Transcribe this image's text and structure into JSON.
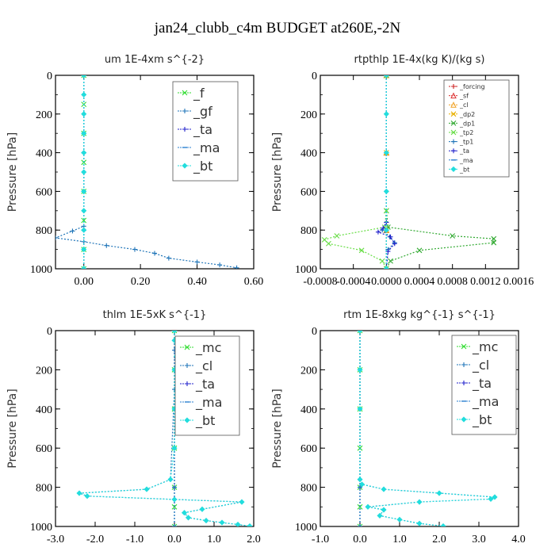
{
  "title": "jan24_clubb_c4m  BUDGET at260E,-2N",
  "chart_data": [
    {
      "type": "line",
      "title": "um   1E-4xm s^{-2}",
      "ylabel": "Pressure [hPa]",
      "xlim": [
        -0.1,
        0.6
      ],
      "ylim": [
        1000,
        0
      ],
      "xticks": [
        -0.2,
        0.0,
        0.2,
        0.4,
        0.6
      ],
      "xtick_labels": [
        "",
        "0.00",
        "0.20",
        "0.40",
        "0.60"
      ],
      "yticks": [
        0,
        200,
        400,
        600,
        800,
        1000
      ],
      "ytick_labels": [
        "0",
        "200",
        "400",
        "600",
        "800",
        "1000"
      ],
      "legend_size": "large",
      "series": [
        {
          "name": "_f",
          "color": "#33dd33",
          "marker": "x",
          "x": [
            0.0,
            0.0,
            0.0,
            0.0,
            0.0,
            0.0,
            0.0,
            0.0
          ],
          "y": [
            0,
            150,
            300,
            450,
            600,
            750,
            900,
            1000
          ]
        },
        {
          "name": "_gf",
          "color": "#1e74b8",
          "marker": "+",
          "x": [
            0.0,
            0.0,
            0.0,
            0.0,
            -0.04,
            -0.1,
            0.0,
            0.08,
            0.18,
            0.25,
            0.3,
            0.4,
            0.48,
            0.54
          ],
          "y": [
            0,
            300,
            600,
            780,
            805,
            840,
            860,
            880,
            900,
            920,
            945,
            965,
            980,
            995
          ]
        },
        {
          "name": "_ta",
          "color": "#2222cc",
          "marker": "+",
          "x": [
            0.0,
            0.0,
            0.0,
            0.0
          ],
          "y": [
            0,
            400,
            800,
            1000
          ]
        },
        {
          "name": "_ma",
          "color": "#2a7fd0",
          "marker": "-",
          "x": [
            0.0,
            0.0,
            0.0,
            0.0
          ],
          "y": [
            0,
            400,
            800,
            1000
          ]
        },
        {
          "name": "_bt",
          "color": "#22dddd",
          "marker": "diamond",
          "x": [
            0.0,
            0.0,
            0.0,
            0.0,
            0.0,
            0.0,
            0.0,
            0.0,
            0.0,
            0.0,
            0.0
          ],
          "y": [
            0,
            100,
            200,
            300,
            400,
            500,
            600,
            700,
            800,
            900,
            1000
          ]
        }
      ]
    },
    {
      "type": "line",
      "title": "rtpthlp   1E-4x(kg K)/(kg s)",
      "ylabel": "Pressure [hPa]",
      "xlim": [
        -0.0008,
        0.0016
      ],
      "ylim": [
        1000,
        0
      ],
      "xticks": [
        -0.0008,
        -0.0004,
        0.0,
        0.0004,
        0.0008,
        0.0012,
        0.0016
      ],
      "xtick_labels": [
        "-0.0008",
        "-0.0004",
        "0.0000",
        "0.0004",
        "0.0008",
        "0.0012",
        "0.0016"
      ],
      "yticks": [
        0,
        200,
        400,
        600,
        800,
        1000
      ],
      "ytick_labels": [
        "0",
        "200",
        "400",
        "600",
        "800",
        "1000"
      ],
      "legend_size": "small",
      "series": [
        {
          "name": "_forcing",
          "color": "#cc2222",
          "marker": "+",
          "x": [
            0.0,
            0.0,
            0.0,
            0.0
          ],
          "y": [
            0,
            400,
            800,
            1000
          ]
        },
        {
          "name": "_sf",
          "color": "#dd3333",
          "marker": "triangle",
          "x": [
            0.0,
            0.0,
            0.0,
            0.0
          ],
          "y": [
            0,
            400,
            800,
            1000
          ]
        },
        {
          "name": "_cl",
          "color": "#f0a020",
          "marker": "triangle",
          "x": [
            0.0,
            0.0,
            0.0,
            0.0
          ],
          "y": [
            0,
            400,
            800,
            1000
          ]
        },
        {
          "name": "_dp2",
          "color": "#e8b000",
          "marker": "x",
          "x": [
            0.0,
            0.0,
            0.0,
            0.0
          ],
          "y": [
            0,
            400,
            800,
            1000
          ]
        },
        {
          "name": "_dp1",
          "color": "#33aa33",
          "marker": "x",
          "x": [
            0.0,
            0.0,
            2e-05,
            0.0008,
            0.0013,
            0.0013,
            0.0004,
            5e-05,
            0.0
          ],
          "y": [
            0,
            700,
            785,
            830,
            845,
            865,
            905,
            960,
            1000
          ]
        },
        {
          "name": "_tp2",
          "color": "#66dd44",
          "marker": "x",
          "x": [
            0.0,
            0.0,
            -2e-05,
            -0.0006,
            -0.00075,
            -0.0007,
            -0.0003,
            -5e-05,
            0.0
          ],
          "y": [
            0,
            700,
            785,
            830,
            850,
            870,
            905,
            960,
            1000
          ]
        },
        {
          "name": "_tp1",
          "color": "#1e74b8",
          "marker": "+",
          "x": [
            0.0,
            0.0,
            -5e-05,
            4e-05,
            0.0001,
            2e-05,
            0.0
          ],
          "y": [
            0,
            760,
            800,
            835,
            865,
            900,
            1000
          ]
        },
        {
          "name": "_ta",
          "color": "#2222cc",
          "marker": "+",
          "x": [
            0.0,
            0.0,
            -4e-05,
            -0.0001,
            5e-05,
            0.0001,
            2e-05,
            0.0
          ],
          "y": [
            0,
            760,
            790,
            810,
            835,
            870,
            910,
            1000
          ]
        },
        {
          "name": "_ma",
          "color": "#2a7fd0",
          "marker": "-",
          "x": [
            0.0,
            0.0,
            0.0,
            0.0
          ],
          "y": [
            0,
            400,
            800,
            1000
          ]
        },
        {
          "name": "_bt",
          "color": "#22dddd",
          "marker": "diamond",
          "x": [
            0.0,
            0.0,
            0.0,
            0.0,
            0.0,
            0.0
          ],
          "y": [
            0,
            200,
            400,
            600,
            800,
            1000
          ]
        }
      ]
    },
    {
      "type": "line",
      "title": "thlm   1E-5xK  s^{-1}",
      "ylabel": "Pressure [hPa]",
      "xlim": [
        -3.0,
        2.0
      ],
      "ylim": [
        1000,
        0
      ],
      "xticks": [
        -3.0,
        -2.0,
        -1.0,
        0.0,
        1.0,
        2.0
      ],
      "xtick_labels": [
        "-3.0",
        "-2.0",
        "-1.0",
        "0.0",
        "1.0",
        "2.0"
      ],
      "yticks": [
        0,
        200,
        400,
        600,
        800,
        1000
      ],
      "ytick_labels": [
        "0",
        "200",
        "400",
        "600",
        "800",
        "1000"
      ],
      "legend_size": "large",
      "series": [
        {
          "name": "_mc",
          "color": "#33dd33",
          "marker": "x",
          "x": [
            0.0,
            0.0,
            0.0,
            0.0,
            0.0,
            0.0,
            0.0
          ],
          "y": [
            0,
            200,
            400,
            600,
            800,
            900,
            1000
          ]
        },
        {
          "name": "_cl",
          "color": "#1e74b8",
          "marker": "+",
          "x": [
            0.0,
            0.0,
            0.05,
            0.0,
            -0.1,
            -0.7,
            -2.4,
            -2.2,
            0.0,
            1.7,
            0.7,
            0.25,
            0.35,
            0.8,
            1.2,
            1.6,
            1.9
          ],
          "y": [
            0,
            100,
            140,
            300,
            760,
            810,
            830,
            845,
            862,
            875,
            912,
            930,
            955,
            970,
            980,
            990,
            998
          ]
        },
        {
          "name": "_ta",
          "color": "#2222cc",
          "marker": "+",
          "x": [
            0.0,
            0.0,
            0.0,
            0.0
          ],
          "y": [
            0,
            400,
            800,
            1000
          ]
        },
        {
          "name": "_ma",
          "color": "#2a7fd0",
          "marker": "-",
          "x": [
            0.0,
            0.0,
            0.0,
            0.0
          ],
          "y": [
            0,
            400,
            800,
            1000
          ]
        },
        {
          "name": "_bt",
          "color": "#22dddd",
          "marker": "diamond",
          "x": [
            0.0,
            0.0,
            0.05,
            0.0,
            0.0,
            0.0,
            -0.1,
            -0.7,
            -2.4,
            -2.2,
            0.0,
            1.7,
            0.7,
            0.25,
            0.35,
            0.8,
            1.2,
            1.6,
            1.9
          ],
          "y": [
            0,
            50,
            130,
            200,
            400,
            600,
            760,
            810,
            830,
            845,
            862,
            875,
            912,
            930,
            955,
            970,
            980,
            990,
            998
          ]
        }
      ]
    },
    {
      "type": "line",
      "title": "rtm   1E-8xkg  kg^{-1}  s^{-1}",
      "ylabel": "Pressure [hPa]",
      "xlim": [
        -1.0,
        4.0
      ],
      "ylim": [
        1000,
        0
      ],
      "xticks": [
        -1.0,
        0.0,
        1.0,
        2.0,
        3.0,
        4.0
      ],
      "xtick_labels": [
        "-1.0",
        "0.0",
        "1.0",
        "2.0",
        "3.0",
        "4.0"
      ],
      "yticks": [
        0,
        200,
        400,
        600,
        800,
        1000
      ],
      "ytick_labels": [
        "0",
        "200",
        "400",
        "600",
        "800",
        "1000"
      ],
      "legend_size": "large",
      "series": [
        {
          "name": "_mc",
          "color": "#33dd33",
          "marker": "x",
          "x": [
            0.0,
            0.0,
            0.0,
            0.0,
            0.0,
            0.0,
            0.0
          ],
          "y": [
            0,
            200,
            400,
            600,
            800,
            900,
            1000
          ]
        },
        {
          "name": "_cl",
          "color": "#1e74b8",
          "marker": "+",
          "x": [
            0.0,
            0.0,
            0.0,
            0.05,
            0.6,
            2.0,
            3.4,
            3.3,
            1.5,
            0.2,
            0.6,
            0.5,
            1.0,
            1.5,
            2.1
          ],
          "y": [
            0,
            400,
            760,
            785,
            810,
            830,
            850,
            860,
            875,
            900,
            915,
            945,
            965,
            985,
            998
          ]
        },
        {
          "name": "_ta",
          "color": "#2222cc",
          "marker": "+",
          "x": [
            0.0,
            0.0,
            0.0,
            0.0
          ],
          "y": [
            0,
            400,
            800,
            1000
          ]
        },
        {
          "name": "_ma",
          "color": "#2a7fd0",
          "marker": "-",
          "x": [
            0.0,
            0.0,
            0.0,
            0.0
          ],
          "y": [
            0,
            400,
            800,
            1000
          ]
        },
        {
          "name": "_bt",
          "color": "#22dddd",
          "marker": "diamond",
          "x": [
            0.0,
            0.0,
            0.0,
            0.0,
            0.05,
            0.6,
            2.0,
            3.4,
            3.3,
            1.5,
            0.2,
            0.6,
            0.5,
            1.0,
            1.5,
            2.1
          ],
          "y": [
            0,
            200,
            400,
            760,
            785,
            810,
            830,
            850,
            860,
            875,
            900,
            915,
            945,
            965,
            985,
            998
          ]
        }
      ]
    }
  ]
}
